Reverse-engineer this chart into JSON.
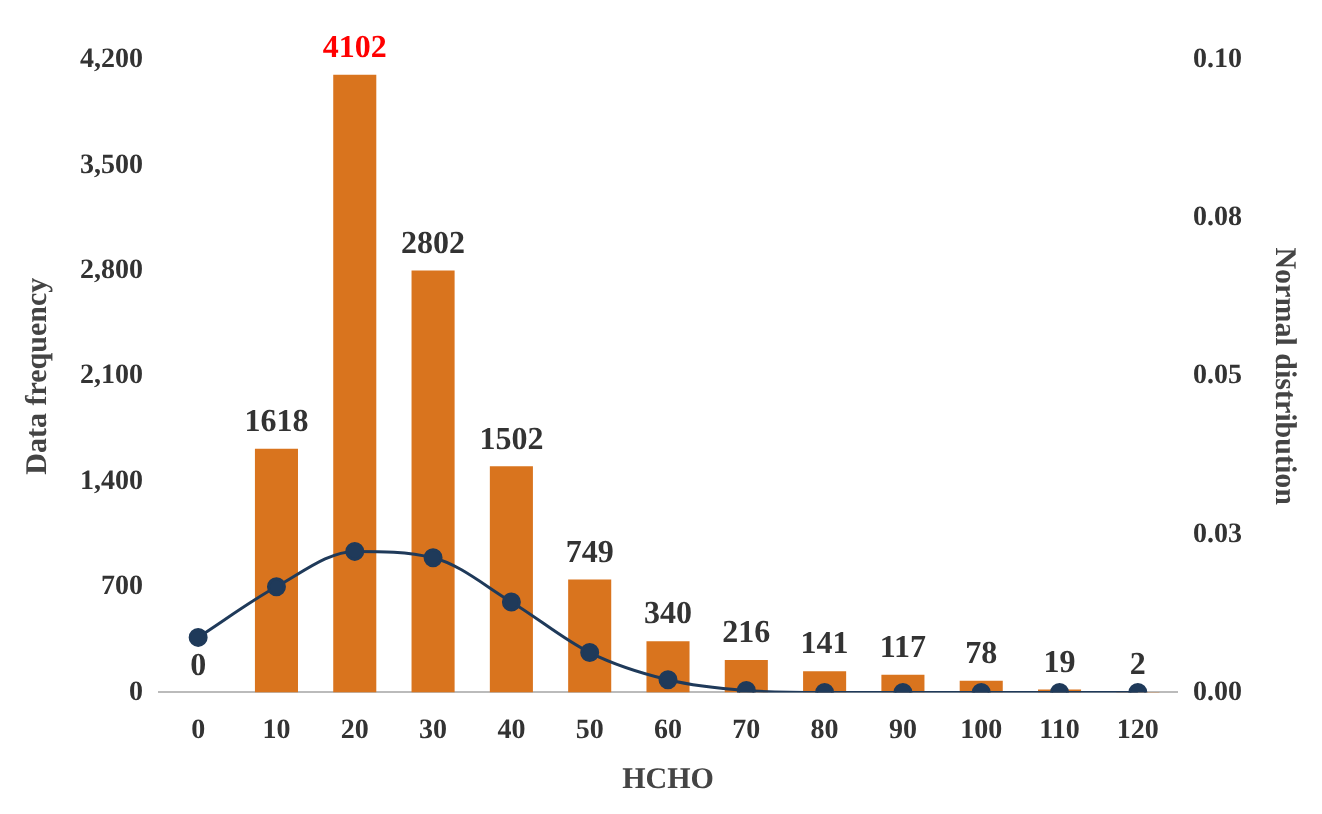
{
  "chart_data": {
    "type": "bar",
    "xlabel": "HCHO",
    "ylabel": "Data frequency",
    "y2label": "Normal distribution",
    "categories": [
      "0",
      "10",
      "20",
      "30",
      "40",
      "50",
      "60",
      "70",
      "80",
      "90",
      "100",
      "110",
      "120"
    ],
    "series": [
      {
        "color": "#d9741e",
        "values": [
          0,
          1618,
          4102,
          2802,
          1502,
          749,
          340,
          216,
          141,
          117,
          78,
          19,
          2
        ],
        "value_labels": [
          "0",
          "1618",
          "4102",
          "2802",
          "1502",
          "749",
          "340",
          "216",
          "141",
          "117",
          "78",
          "19",
          "2"
        ]
      },
      {
        "type": "line",
        "axis": "y2",
        "color": "#1f3a5a",
        "values": [
          0.0087,
          0.0167,
          0.0223,
          0.0213,
          0.0143,
          0.0063,
          0.002,
          0.0003,
          0,
          0,
          0,
          0,
          0
        ]
      }
    ],
    "ylim": [
      0,
      4200
    ],
    "yticks": [
      0,
      700,
      {
        "value": 1400,
        "label": "1,400"
      },
      {
        "value": 2100,
        "label": "2,100"
      },
      {
        "value": 2800,
        "label": "2,800"
      },
      {
        "value": 3500,
        "label": "3,500"
      },
      {
        "value": 4200,
        "label": "4,200"
      }
    ],
    "y2lim": [
      0,
      0.1
    ],
    "y2ticks": [
      {
        "value": 0,
        "label": "0.00"
      },
      {
        "value": 0.025,
        "label": "0.03"
      },
      {
        "value": 0.05,
        "label": "0.05"
      },
      {
        "value": 0.075,
        "label": "0.08"
      },
      {
        "value": 0.1,
        "label": "0.10"
      }
    ],
    "grid": false,
    "legend": false,
    "marker": "circle"
  }
}
